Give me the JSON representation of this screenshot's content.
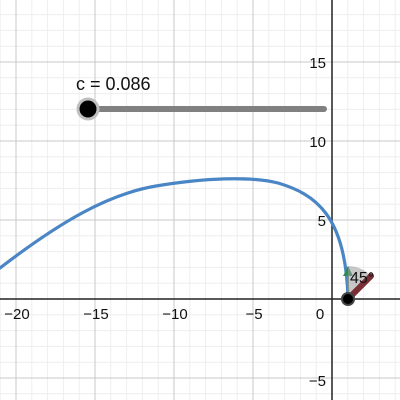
{
  "slider": {
    "name": "c",
    "value": "0.086",
    "label": "c = 0.086"
  },
  "axes": {
    "x_ticks": [
      "−20",
      "−15",
      "−10",
      "−5",
      "0"
    ],
    "y_ticks": [
      "15",
      "10",
      "5",
      "−5"
    ]
  },
  "angle": {
    "label": "45°"
  },
  "colors": {
    "curve": "#4a86c5",
    "slider_track": "#808080",
    "slider_thumb": "#000000",
    "point": "#000000",
    "angle_fill": "#7a2f36",
    "green_vector": "#2e8b57",
    "grid_major": "#c9c9c9",
    "grid_minor": "#eeeeee",
    "axis": "#222222"
  },
  "icons": {
    "slider_thumb": "circle-thumb-icon",
    "point": "point-icon",
    "angle_marker": "angle-marker-icon"
  }
}
